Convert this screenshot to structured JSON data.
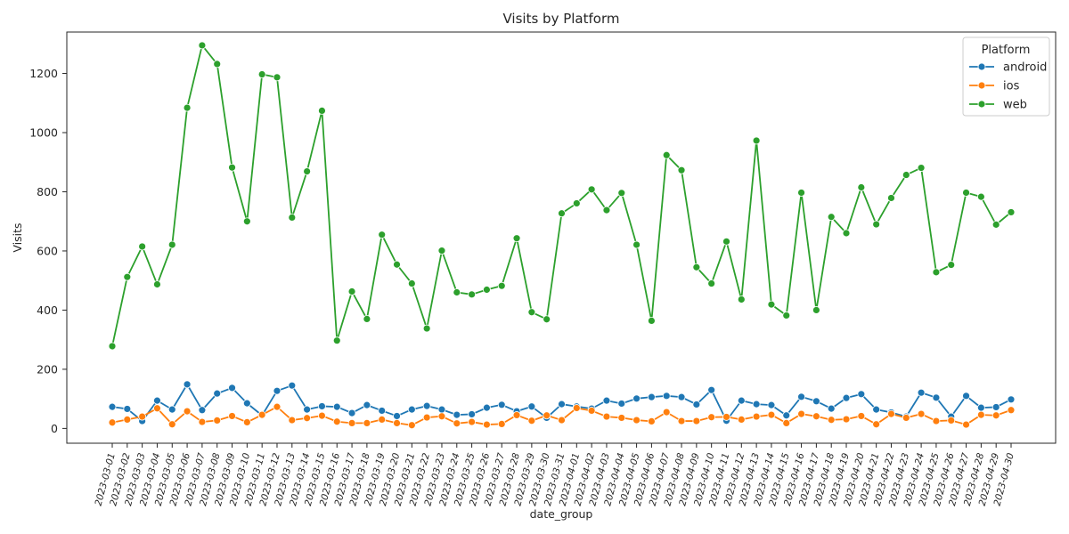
{
  "chart_data": {
    "type": "line",
    "title": "Visits by Platform",
    "xlabel": "date_group",
    "ylabel": "Visits",
    "ylim": [
      -50,
      1340
    ],
    "yticks": [
      0,
      200,
      400,
      600,
      800,
      1000,
      1200
    ],
    "grid": false,
    "legend": {
      "title": "Platform",
      "placement": "top-right"
    },
    "categories": [
      "2023-03-01",
      "2023-03-02",
      "2023-03-03",
      "2023-03-04",
      "2023-03-05",
      "2023-03-06",
      "2023-03-07",
      "2023-03-08",
      "2023-03-09",
      "2023-03-10",
      "2023-03-11",
      "2023-03-12",
      "2023-03-13",
      "2023-03-14",
      "2023-03-15",
      "2023-03-16",
      "2023-03-17",
      "2023-03-18",
      "2023-03-19",
      "2023-03-20",
      "2023-03-21",
      "2023-03-22",
      "2023-03-23",
      "2023-03-24",
      "2023-03-25",
      "2023-03-26",
      "2023-03-27",
      "2023-03-28",
      "2023-03-29",
      "2023-03-30",
      "2023-03-31",
      "2023-04-01",
      "2023-04-02",
      "2023-04-03",
      "2023-04-04",
      "2023-04-05",
      "2023-04-06",
      "2023-04-07",
      "2023-04-08",
      "2023-04-09",
      "2023-04-10",
      "2023-04-11",
      "2023-04-12",
      "2023-04-13",
      "2023-04-14",
      "2023-04-15",
      "2023-04-16",
      "2023-04-17",
      "2023-04-18",
      "2023-04-19",
      "2023-04-20",
      "2023-04-21",
      "2023-04-22",
      "2023-04-23",
      "2023-04-24",
      "2023-04-25",
      "2023-04-26",
      "2023-04-27",
      "2023-04-28",
      "2023-04-29",
      "2023-04-30"
    ],
    "series": [
      {
        "name": "android",
        "color": "#1f77b4",
        "values": [
          73,
          66,
          25,
          94,
          64,
          149,
          62,
          118,
          137,
          85,
          44,
          127,
          145,
          64,
          75,
          73,
          52,
          79,
          60,
          42,
          64,
          76,
          64,
          46,
          48,
          70,
          80,
          58,
          74,
          36,
          82,
          74,
          67,
          94,
          84,
          101,
          106,
          110,
          106,
          81,
          130,
          26,
          94,
          82,
          79,
          44,
          107,
          92,
          67,
          103,
          116,
          64,
          54,
          40,
          121,
          104,
          40,
          110,
          70,
          72,
          98
        ]
      },
      {
        "name": "ios",
        "color": "#ff7f0e",
        "values": [
          20,
          30,
          40,
          68,
          14,
          58,
          22,
          27,
          42,
          21,
          46,
          73,
          28,
          35,
          43,
          23,
          18,
          18,
          30,
          18,
          11,
          37,
          41,
          17,
          22,
          13,
          15,
          45,
          26,
          44,
          28,
          69,
          60,
          40,
          36,
          28,
          24,
          55,
          25,
          25,
          38,
          39,
          30,
          40,
          46,
          18,
          49,
          41,
          29,
          31,
          42,
          14,
          49,
          36,
          49,
          25,
          27,
          13,
          46,
          44,
          62
        ]
      },
      {
        "name": "web",
        "color": "#2ca02c",
        "values": [
          278,
          512,
          615,
          487,
          621,
          1084,
          1295,
          1232,
          882,
          700,
          1197,
          1187,
          713,
          869,
          1074,
          297,
          463,
          370,
          655,
          554,
          490,
          338,
          601,
          460,
          453,
          469,
          482,
          643,
          393,
          369,
          727,
          761,
          808,
          738,
          796,
          621,
          364,
          924,
          873,
          545,
          490,
          632,
          436,
          973,
          419,
          382,
          797,
          400,
          715,
          660,
          815,
          690,
          779,
          857,
          881,
          528,
          553,
          797,
          783,
          689,
          731
        ]
      }
    ]
  }
}
